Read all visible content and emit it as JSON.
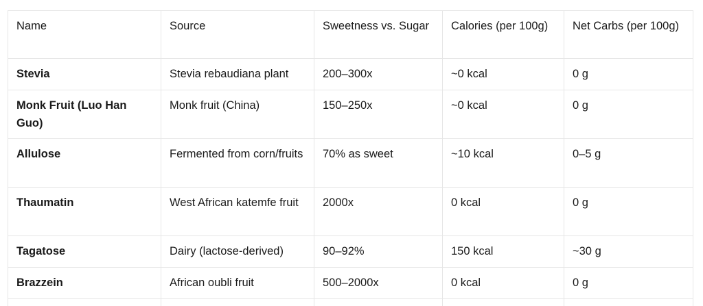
{
  "table": {
    "headers": [
      "Name",
      "Source",
      "Sweetness vs. Sugar",
      "Calories (per 100g)",
      "Net Carbs (per 100g)"
    ],
    "rows": [
      [
        "Stevia",
        "Stevia rebaudiana plant",
        "200–300x",
        "~0 kcal",
        "0 g"
      ],
      [
        "Monk Fruit (Luo Han Guo)",
        "Monk fruit (China)",
        "150–250x",
        "~0 kcal",
        "0 g"
      ],
      [
        "Allulose",
        "Fermented from corn/fruits",
        "70% as sweet",
        "~10 kcal",
        "0–5 g"
      ],
      [
        "Thaumatin",
        "West African katemfe fruit",
        "2000x",
        "0 kcal",
        "0 g"
      ],
      [
        "Tagatose",
        "Dairy (lactose-derived)",
        "90–92%",
        "150 kcal",
        "~30 g"
      ],
      [
        "Brazzein",
        "African oubli fruit",
        "500–2000x",
        "0 kcal",
        "0 g"
      ],
      [
        "",
        "",
        "",
        "",
        ""
      ]
    ]
  }
}
